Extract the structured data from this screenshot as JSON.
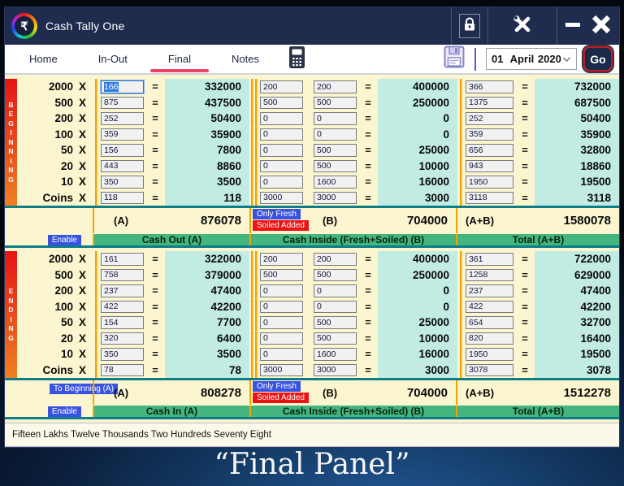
{
  "titlebar": {
    "app_title": "Cash Tally One",
    "logo_symbol": "₹"
  },
  "navbar": {
    "tabs": [
      {
        "label": "Home"
      },
      {
        "label": "In-Out"
      },
      {
        "label": "Final"
      },
      {
        "label": "Notes"
      }
    ],
    "active_tab": "Final",
    "date": {
      "day": "01",
      "month": "April",
      "year": "2020"
    },
    "go_button": "Go"
  },
  "table": {
    "denominations": [
      "2000",
      "500",
      "200",
      "100",
      "50",
      "20",
      "10",
      "Coins"
    ],
    "times_symbol": "X",
    "equals_symbol": "=",
    "beginning": {
      "label": "BEGINNING",
      "rows": [
        {
          "qty_a": "166",
          "amt_a": "332000",
          "fresh_b": "200",
          "total_b": "200",
          "amt_b": "400000",
          "qty_ab": "366",
          "amt_ab": "732000"
        },
        {
          "qty_a": "875",
          "amt_a": "437500",
          "fresh_b": "500",
          "total_b": "500",
          "amt_b": "250000",
          "qty_ab": "1375",
          "amt_ab": "687500"
        },
        {
          "qty_a": "252",
          "amt_a": "50400",
          "fresh_b": "0",
          "total_b": "0",
          "amt_b": "0",
          "qty_ab": "252",
          "amt_ab": "50400"
        },
        {
          "qty_a": "359",
          "amt_a": "35900",
          "fresh_b": "0",
          "total_b": "0",
          "amt_b": "0",
          "qty_ab": "359",
          "amt_ab": "35900"
        },
        {
          "qty_a": "156",
          "amt_a": "7800",
          "fresh_b": "0",
          "total_b": "500",
          "amt_b": "25000",
          "qty_ab": "656",
          "amt_ab": "32800"
        },
        {
          "qty_a": "443",
          "amt_a": "8860",
          "fresh_b": "0",
          "total_b": "500",
          "amt_b": "10000",
          "qty_ab": "943",
          "amt_ab": "18860"
        },
        {
          "qty_a": "350",
          "amt_a": "3500",
          "fresh_b": "0",
          "total_b": "1600",
          "amt_b": "16000",
          "qty_ab": "1950",
          "amt_ab": "19500"
        },
        {
          "qty_a": "118",
          "amt_a": "118",
          "fresh_b": "3000",
          "total_b": "3000",
          "amt_b": "3000",
          "qty_ab": "3118",
          "amt_ab": "3118"
        }
      ],
      "summary": {
        "a_label": "(A)",
        "a_value": "876078",
        "only_fresh_badge": "Only Fresh",
        "soiled_added_badge": "Soiled Added",
        "b_label": "(B)",
        "b_value": "704000",
        "ab_label": "(A+B)",
        "ab_value": "1580078",
        "enable_badge": "Enable",
        "bar_a": "Cash Out (A)",
        "bar_b": "Cash Inside (Fresh+Soiled) (B)",
        "bar_ab": "Total (A+B)"
      }
    },
    "ending": {
      "label": "ENDING",
      "rows": [
        {
          "qty_a": "161",
          "amt_a": "322000",
          "fresh_b": "200",
          "total_b": "200",
          "amt_b": "400000",
          "qty_ab": "361",
          "amt_ab": "722000"
        },
        {
          "qty_a": "758",
          "amt_a": "379000",
          "fresh_b": "500",
          "total_b": "500",
          "amt_b": "250000",
          "qty_ab": "1258",
          "amt_ab": "629000"
        },
        {
          "qty_a": "237",
          "amt_a": "47400",
          "fresh_b": "0",
          "total_b": "0",
          "amt_b": "0",
          "qty_ab": "237",
          "amt_ab": "47400"
        },
        {
          "qty_a": "422",
          "amt_a": "42200",
          "fresh_b": "0",
          "total_b": "0",
          "amt_b": "0",
          "qty_ab": "422",
          "amt_ab": "42200"
        },
        {
          "qty_a": "154",
          "amt_a": "7700",
          "fresh_b": "0",
          "total_b": "500",
          "amt_b": "25000",
          "qty_ab": "654",
          "amt_ab": "32700"
        },
        {
          "qty_a": "320",
          "amt_a": "6400",
          "fresh_b": "0",
          "total_b": "500",
          "amt_b": "10000",
          "qty_ab": "820",
          "amt_ab": "16400"
        },
        {
          "qty_a": "350",
          "amt_a": "3500",
          "fresh_b": "0",
          "total_b": "1600",
          "amt_b": "16000",
          "qty_ab": "1950",
          "amt_ab": "19500"
        },
        {
          "qty_a": "78",
          "amt_a": "78",
          "fresh_b": "3000",
          "total_b": "3000",
          "amt_b": "3000",
          "qty_ab": "3078",
          "amt_ab": "3078"
        }
      ],
      "summary": {
        "to_beginning_badge": "To Beginning (A)",
        "a_label": "(A)",
        "a_value": "808278",
        "only_fresh_badge": "Only Fresh",
        "soiled_added_badge": "Soiled Added",
        "b_label": "(B)",
        "b_value": "704000",
        "ab_label": "(A+B)",
        "ab_value": "1512278",
        "enable_badge": "Enable",
        "bar_a": "Cash In (A)",
        "bar_b": "Cash Inside (Fresh+Soiled) (B)",
        "bar_ab": "Total (A+B)"
      }
    }
  },
  "amount_in_words": "Fifteen Lakhs Twelve Thousands Two Hundreds Seventy Eight",
  "caption": "“Final Panel”",
  "colors": {
    "titlebar_navy": "#1f2c4e",
    "tab_underline_pink": "#f0436a",
    "panel_cream": "#fbf5d0",
    "result_cyan": "#c2ebe4",
    "header_green": "#44b57e",
    "divider_orange": "#f5a300",
    "divider_teal": "#0d7e87",
    "badge_blue": "#3a52e0",
    "badge_red": "#ee1212",
    "go_border_red": "#c4182a"
  }
}
